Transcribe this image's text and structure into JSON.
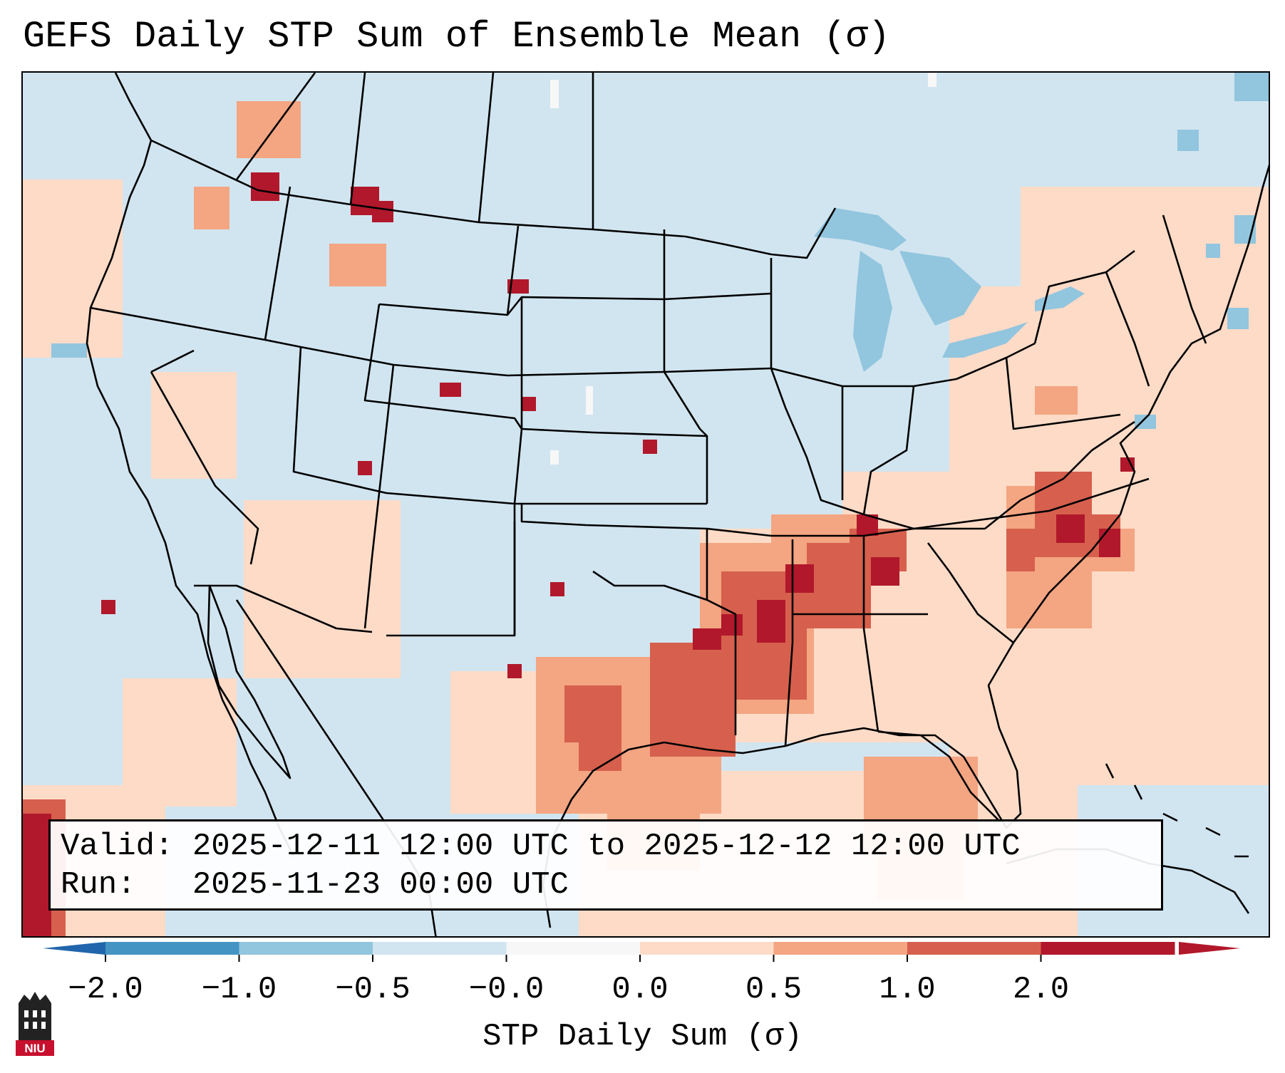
{
  "title": "GEFS Daily STP Sum of Ensemble Mean (σ)",
  "info": {
    "valid_line": "Valid: 2025-12-11 12:00 UTC to 2025-12-12 12:00 UTC",
    "run_line": "Run:   2025-11-23 00:00 UTC"
  },
  "colorbar": {
    "label": "STP Daily Sum (σ)",
    "ticks": [
      "−2.0",
      "−1.0",
      "−0.5",
      "−0.0",
      "0.0",
      "0.5",
      "1.0",
      "2.0"
    ],
    "colors": [
      "#4393c3",
      "#92c5de",
      "#d1e5f0",
      "#f7f7f7",
      "#fddbc7",
      "#f4a582",
      "#d6604d",
      "#b2182b"
    ],
    "extend_low_color": "#2166ac",
    "extend_high_color": "#b2182b"
  },
  "logo": {
    "text": "NIU",
    "color": "#c8102e"
  },
  "map_colors": {
    "land_background": "#d1e5f0",
    "lake": "#92c5de"
  }
}
